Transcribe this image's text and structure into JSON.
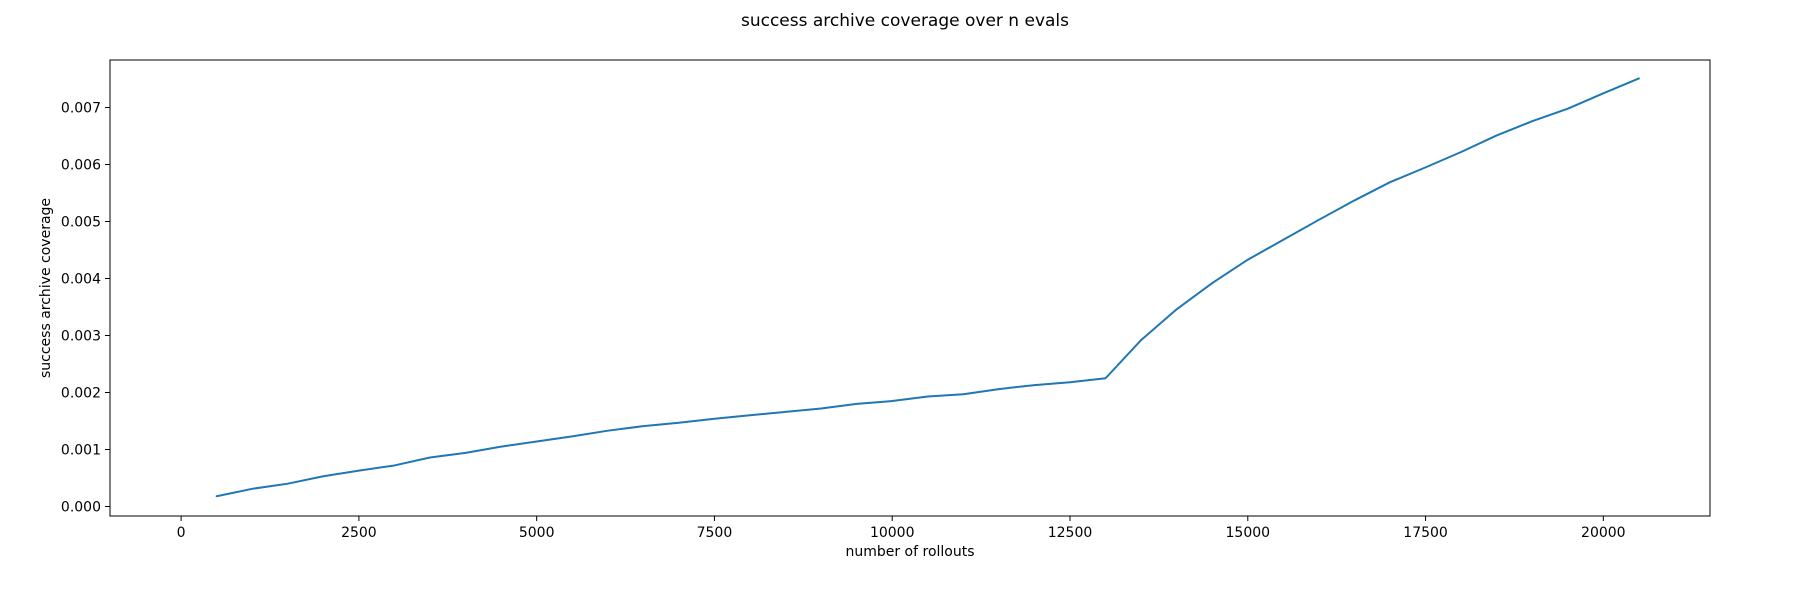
{
  "chart_data": {
    "type": "line",
    "title": "success archive coverage over n evals",
    "xlabel": "number of rollouts",
    "ylabel": "success archive coverage",
    "xlim": [
      -1000,
      21500
    ],
    "ylim": [
      -0.000167,
      0.007834
    ],
    "x_ticks": [
      0,
      2500,
      5000,
      7500,
      10000,
      12500,
      15000,
      17500,
      20000
    ],
    "x_tick_labels": [
      "0",
      "2500",
      "5000",
      "7500",
      "10000",
      "12500",
      "15000",
      "17500",
      "20000"
    ],
    "y_ticks": [
      0.0,
      0.001,
      0.002,
      0.003,
      0.004,
      0.005,
      0.006,
      0.007
    ],
    "y_tick_labels": [
      "0.000",
      "0.001",
      "0.002",
      "0.003",
      "0.004",
      "0.005",
      "0.006",
      "0.007"
    ],
    "grid": false,
    "legend": "none",
    "line_color": "#1f77b4",
    "series": [
      {
        "x": [
          500,
          1000,
          1500,
          2000,
          2500,
          3000,
          3500,
          4000,
          4500,
          5000,
          5500,
          6000,
          6500,
          7000,
          7500,
          8000,
          8500,
          9000,
          9500,
          10000,
          10500,
          11000,
          11500,
          12000,
          12500,
          13000,
          13500,
          14000,
          14500,
          15000,
          15500,
          16000,
          16500,
          17000,
          17500,
          18000,
          18500,
          19000,
          19500,
          20000,
          20500
        ],
        "values": [
          0.00018,
          0.00031,
          0.0004,
          0.00053,
          0.00063,
          0.00072,
          0.00086,
          0.00094,
          0.00105,
          0.00114,
          0.00123,
          0.00133,
          0.00141,
          0.00147,
          0.00154,
          0.0016,
          0.00166,
          0.00172,
          0.0018,
          0.00185,
          0.00193,
          0.00197,
          0.00206,
          0.00213,
          0.00218,
          0.00225,
          0.00292,
          0.00346,
          0.00392,
          0.00433,
          0.00468,
          0.00503,
          0.00537,
          0.00569,
          0.00595,
          0.00622,
          0.00651,
          0.00676,
          0.00698,
          0.00725,
          0.00751
        ]
      }
    ]
  }
}
